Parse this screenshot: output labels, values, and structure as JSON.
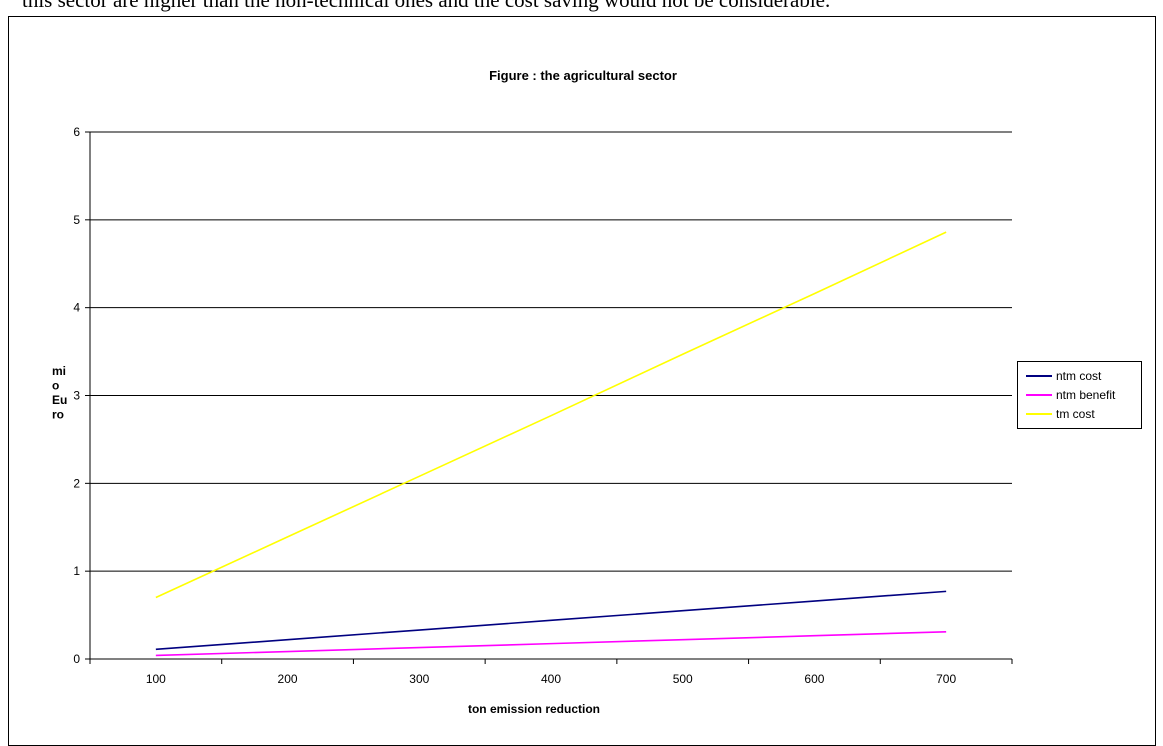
{
  "document": {
    "text_fragment": "this sector are higher than the non-technical ones and the cost saving would not be considerable."
  },
  "colors": {
    "ntm_cost": "#000080",
    "ntm_benefit": "#ff00ff",
    "tm_cost": "#ffff00",
    "grid": "#000000"
  },
  "chart_data": {
    "type": "line",
    "title": "Figure : the agricultural sector",
    "xlabel": "ton emission reduction",
    "ylabel": "mi o Eu ro",
    "ylabel_lines": [
      "mi",
      "o",
      "Eu",
      "ro"
    ],
    "categories": [
      100,
      200,
      300,
      400,
      500,
      600,
      700
    ],
    "xlim": [
      100,
      700
    ],
    "ylim": [
      0,
      6
    ],
    "yticks": [
      0,
      1,
      2,
      3,
      4,
      5,
      6
    ],
    "grid": true,
    "legend_position": "right",
    "series": [
      {
        "name": "ntm cost",
        "color": "#000080",
        "values": [
          0.11,
          0.22,
          0.33,
          0.44,
          0.55,
          0.66,
          0.77
        ]
      },
      {
        "name": "ntm benefit",
        "color": "#ff00ff",
        "values": [
          0.04,
          0.085,
          0.13,
          0.175,
          0.22,
          0.265,
          0.31
        ]
      },
      {
        "name": "tm cost",
        "color": "#ffff00",
        "values": [
          0.7,
          1.39,
          2.08,
          2.77,
          3.47,
          4.16,
          4.86
        ]
      }
    ]
  }
}
